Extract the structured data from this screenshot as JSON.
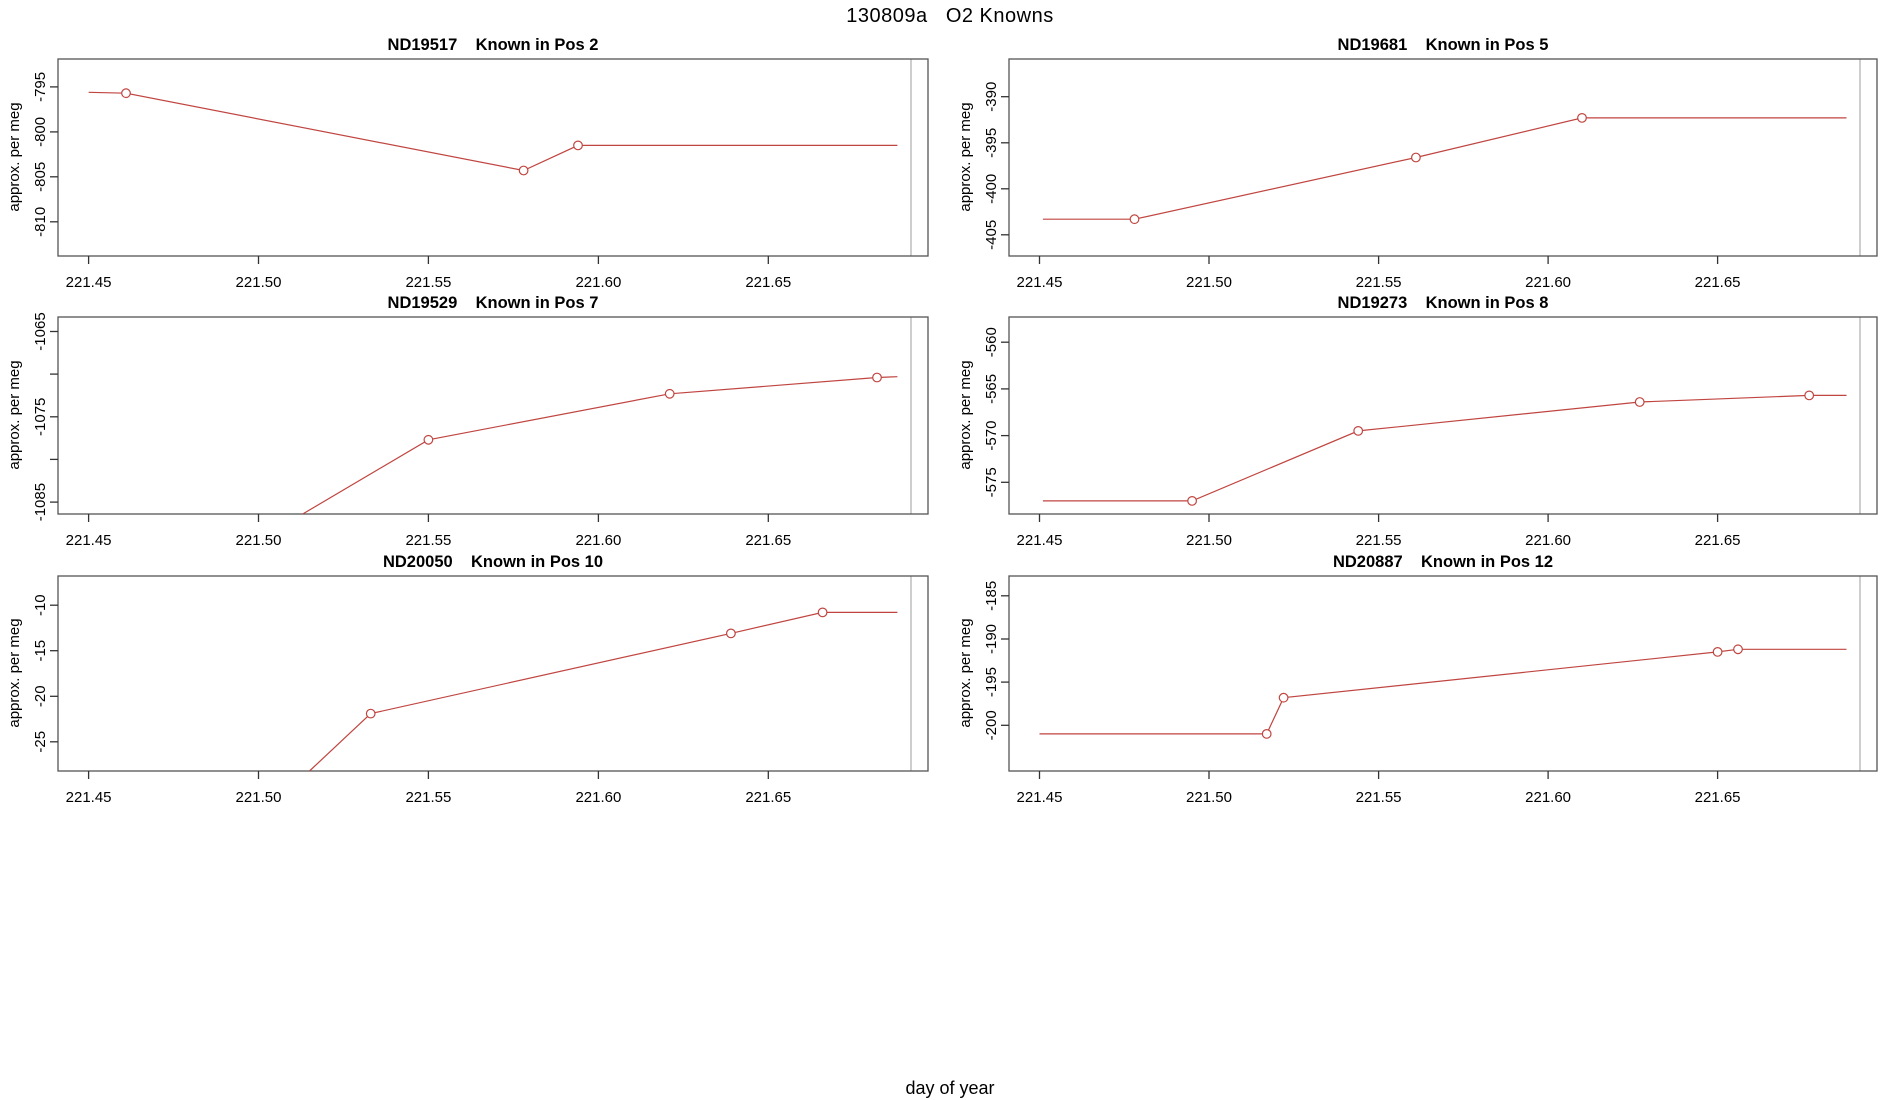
{
  "header": {
    "title": "130809a   O2 Knowns"
  },
  "footer": {
    "xlabel": "day of year"
  },
  "chart_data": {
    "type": "line",
    "title": "130809a   O2 Knowns",
    "xlabel": "day of year",
    "grid": false,
    "legend": "none",
    "xlim": [
      221.441,
      221.697
    ],
    "x_ticks": [
      {
        "v": 221.45,
        "label": "221.45"
      },
      {
        "v": 221.5,
        "label": "221.50"
      },
      {
        "v": 221.55,
        "label": "221.55"
      },
      {
        "v": 221.6,
        "label": "221.60"
      },
      {
        "v": 221.65,
        "label": "221.65"
      }
    ],
    "colors": {
      "series": "#c04540",
      "marker_fill": "#ffffff",
      "frame": "#555555",
      "tick": "#333333",
      "text": "#000000",
      "right_vline": "#b8b8b8"
    },
    "panels": [
      {
        "id": "ND19517",
        "title": "ND19517    Known in Pos 2",
        "ylabel": "approx. per meg",
        "ylim": [
          -813.8,
          -791.9
        ],
        "y_ticks": [
          {
            "v": -795,
            "label": "-795"
          },
          {
            "v": -800,
            "label": "-800"
          },
          {
            "v": -805,
            "label": "-805"
          },
          {
            "v": -810,
            "label": "-810"
          }
        ],
        "vline_x": 221.692,
        "points": [
          {
            "x": 221.45,
            "y": -795.6,
            "m": false
          },
          {
            "x": 221.461,
            "y": -795.7,
            "m": true
          },
          {
            "x": 221.578,
            "y": -804.3,
            "m": true
          },
          {
            "x": 221.594,
            "y": -801.5,
            "m": true
          },
          {
            "x": 221.688,
            "y": -801.5,
            "m": false
          }
        ]
      },
      {
        "id": "ND19681",
        "title": "ND19681    Known in Pos 5",
        "ylabel": "approx. per meg",
        "ylim": [
          -407.3,
          -385.9
        ],
        "y_ticks": [
          {
            "v": -390,
            "label": "-390"
          },
          {
            "v": -395,
            "label": "-395"
          },
          {
            "v": -400,
            "label": "-400"
          },
          {
            "v": -405,
            "label": "-405"
          }
        ],
        "vline_x": 221.692,
        "points": [
          {
            "x": 221.451,
            "y": -403.3,
            "m": false
          },
          {
            "x": 221.478,
            "y": -403.3,
            "m": true
          },
          {
            "x": 221.561,
            "y": -396.6,
            "m": true
          },
          {
            "x": 221.61,
            "y": -392.3,
            "m": true
          },
          {
            "x": 221.688,
            "y": -392.3,
            "m": false
          }
        ]
      },
      {
        "id": "ND19529",
        "title": "ND19529    Known in Pos 7",
        "ylabel": "approx. per meg",
        "ylim": [
          -1086.4,
          -1063.3
        ],
        "y_ticks": [
          {
            "v": -1065,
            "label": "-1065"
          },
          {
            "v": -1070,
            "label": ""
          },
          {
            "v": -1075,
            "label": "-1075"
          },
          {
            "v": -1080,
            "label": ""
          },
          {
            "v": -1085,
            "label": "-1085"
          }
        ],
        "vline_x": 221.692,
        "points": [
          {
            "x": 221.513,
            "y": -1086.4,
            "m": false
          },
          {
            "x": 221.55,
            "y": -1077.7,
            "m": true
          },
          {
            "x": 221.621,
            "y": -1072.3,
            "m": true
          },
          {
            "x": 221.682,
            "y": -1070.4,
            "m": true
          },
          {
            "x": 221.688,
            "y": -1070.3,
            "m": false
          }
        ]
      },
      {
        "id": "ND19273",
        "title": "ND19273    Known in Pos 8",
        "ylabel": "approx. per meg",
        "ylim": [
          -578.4,
          -557.3
        ],
        "y_ticks": [
          {
            "v": -560,
            "label": "-560"
          },
          {
            "v": -565,
            "label": "-565"
          },
          {
            "v": -570,
            "label": "-570"
          },
          {
            "v": -575,
            "label": "-575"
          }
        ],
        "vline_x": 221.692,
        "points": [
          {
            "x": 221.451,
            "y": -577.0,
            "m": false
          },
          {
            "x": 221.495,
            "y": -577.0,
            "m": true
          },
          {
            "x": 221.544,
            "y": -569.5,
            "m": true
          },
          {
            "x": 221.627,
            "y": -566.4,
            "m": true
          },
          {
            "x": 221.677,
            "y": -565.7,
            "m": true
          },
          {
            "x": 221.688,
            "y": -565.7,
            "m": false
          }
        ]
      },
      {
        "id": "ND20050",
        "title": "ND20050    Known in Pos 10",
        "ylabel": "approx. per meg",
        "ylim": [
          -28.2,
          -6.8
        ],
        "y_ticks": [
          {
            "v": -10,
            "label": "-10"
          },
          {
            "v": -15,
            "label": "-15"
          },
          {
            "v": -20,
            "label": "-20"
          },
          {
            "v": -25,
            "label": "-25"
          }
        ],
        "vline_x": 221.692,
        "points": [
          {
            "x": 221.515,
            "y": -28.2,
            "m": false
          },
          {
            "x": 221.533,
            "y": -21.9,
            "m": true
          },
          {
            "x": 221.639,
            "y": -13.1,
            "m": true
          },
          {
            "x": 221.666,
            "y": -10.8,
            "m": true
          },
          {
            "x": 221.688,
            "y": -10.8,
            "m": false
          }
        ]
      },
      {
        "id": "ND20887",
        "title": "ND20887    Known in Pos 12",
        "ylabel": "approx. per meg",
        "ylim": [
          -205.3,
          -182.7
        ],
        "y_ticks": [
          {
            "v": -185,
            "label": "-185"
          },
          {
            "v": -190,
            "label": "-190"
          },
          {
            "v": -195,
            "label": "-195"
          },
          {
            "v": -200,
            "label": "-200"
          }
        ],
        "vline_x": 221.692,
        "points": [
          {
            "x": 221.45,
            "y": -201.0,
            "m": false
          },
          {
            "x": 221.517,
            "y": -201.0,
            "m": true
          },
          {
            "x": 221.522,
            "y": -196.8,
            "m": true
          },
          {
            "x": 221.65,
            "y": -191.5,
            "m": true
          },
          {
            "x": 221.656,
            "y": -191.2,
            "m": true
          },
          {
            "x": 221.688,
            "y": -191.2,
            "m": false
          }
        ]
      }
    ]
  }
}
